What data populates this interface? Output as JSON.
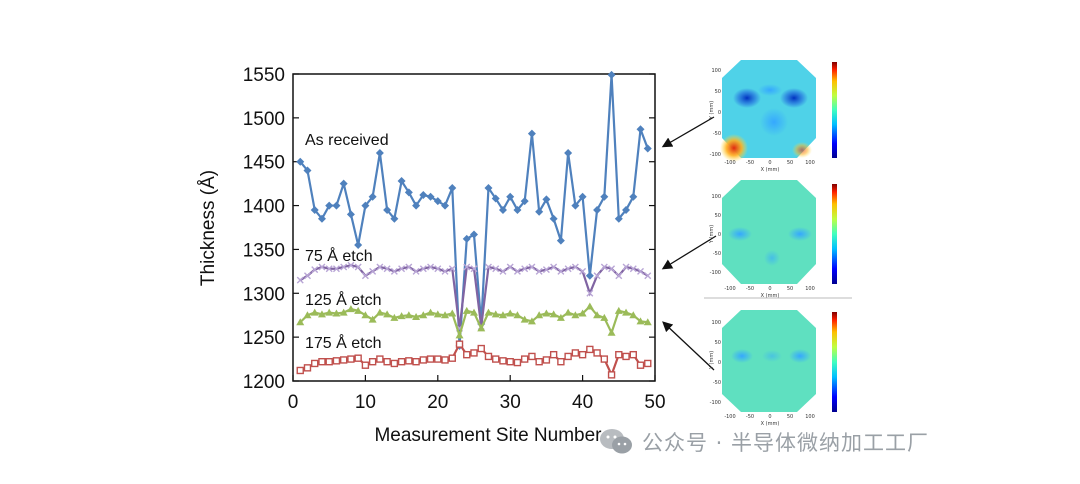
{
  "chart_data": {
    "type": "line",
    "xlabel": "Measurement Site Number",
    "ylabel": "Thickness (Å)",
    "xlim": [
      0,
      50
    ],
    "ylim": [
      1200,
      1550
    ],
    "xticks": [
      0,
      10,
      20,
      30,
      40,
      50
    ],
    "yticks": [
      1200,
      1250,
      1300,
      1350,
      1400,
      1450,
      1500,
      1550
    ],
    "x": [
      1,
      2,
      3,
      4,
      5,
      6,
      7,
      8,
      9,
      10,
      11,
      12,
      13,
      14,
      15,
      16,
      17,
      18,
      19,
      20,
      21,
      22,
      23,
      24,
      25,
      26,
      27,
      28,
      29,
      30,
      31,
      32,
      33,
      34,
      35,
      36,
      37,
      38,
      39,
      40,
      41,
      42,
      43,
      44,
      45,
      46,
      47,
      48,
      49
    ],
    "series": [
      {
        "name": "As received",
        "color": "#4f81bd",
        "marker": "diamond",
        "values": [
          1450,
          1440,
          1395,
          1385,
          1400,
          1400,
          1425,
          1390,
          1355,
          1400,
          1410,
          1460,
          1395,
          1385,
          1428,
          1415,
          1400,
          1412,
          1410,
          1405,
          1400,
          1420,
          1240,
          1362,
          1367,
          1265,
          1420,
          1408,
          1395,
          1410,
          1395,
          1405,
          1482,
          1393,
          1407,
          1385,
          1360,
          1460,
          1400,
          1410,
          1320,
          1395,
          1410,
          1549,
          1385,
          1395,
          1410,
          1487,
          1465
        ]
      },
      {
        "name": "75 Å etch",
        "color": "#8064a2",
        "marker": "x",
        "values": [
          1315,
          1320,
          1327,
          1330,
          1328,
          1328,
          1330,
          1332,
          1330,
          1320,
          1325,
          1330,
          1328,
          1325,
          1328,
          1330,
          1325,
          1328,
          1330,
          1328,
          1325,
          1328,
          1260,
          1330,
          1328,
          1262,
          1330,
          1328,
          1325,
          1330,
          1325,
          1328,
          1330,
          1325,
          1327,
          1330,
          1325,
          1328,
          1330,
          1325,
          1300,
          1320,
          1330,
          1328,
          1320,
          1330,
          1328,
          1325,
          1320
        ]
      },
      {
        "name": "125 Å etch",
        "color": "#9bbb59",
        "marker": "triangle",
        "values": [
          1267,
          1275,
          1278,
          1276,
          1278,
          1277,
          1278,
          1282,
          1280,
          1275,
          1270,
          1278,
          1276,
          1272,
          1274,
          1275,
          1273,
          1275,
          1278,
          1276,
          1275,
          1277,
          1252,
          1280,
          1278,
          1260,
          1278,
          1276,
          1275,
          1277,
          1275,
          1270,
          1268,
          1275,
          1277,
          1276,
          1272,
          1278,
          1275,
          1277,
          1285,
          1275,
          1272,
          1255,
          1280,
          1278,
          1275,
          1268,
          1267
        ]
      },
      {
        "name": "175 Å etch",
        "color": "#c0504d",
        "marker": "square",
        "values": [
          1212,
          1215,
          1220,
          1222,
          1222,
          1223,
          1224,
          1225,
          1226,
          1218,
          1222,
          1225,
          1222,
          1220,
          1222,
          1223,
          1222,
          1224,
          1225,
          1225,
          1224,
          1226,
          1242,
          1230,
          1232,
          1237,
          1228,
          1225,
          1223,
          1222,
          1221,
          1225,
          1228,
          1222,
          1224,
          1230,
          1222,
          1228,
          1232,
          1230,
          1236,
          1232,
          1225,
          1207,
          1230,
          1228,
          1230,
          1218,
          1220
        ]
      }
    ]
  },
  "maps": [
    {
      "y_axis_label": "Y (mm)",
      "x_axis_label": "X (mm)",
      "xticks": [
        "-100",
        "-50",
        "0",
        "50",
        "100"
      ],
      "yticks": [
        "100",
        "50",
        "0",
        "-50",
        "-100"
      ]
    },
    {
      "y_axis_label": "Y (mm)",
      "x_axis_label": "X (mm)",
      "xticks": [
        "-100",
        "-50",
        "0",
        "50",
        "100"
      ],
      "yticks": [
        "100",
        "50",
        "0",
        "-50",
        "-100"
      ]
    },
    {
      "y_axis_label": "Y (mm)",
      "x_axis_label": "X (mm)",
      "xticks": [
        "-100",
        "-50",
        "0",
        "50",
        "100"
      ],
      "yticks": [
        "100",
        "50",
        "0",
        "-50",
        "-100"
      ]
    }
  ],
  "watermark": {
    "text": "公众号 · 半导体微纳加工工厂",
    "icon": "wechat-icon"
  }
}
